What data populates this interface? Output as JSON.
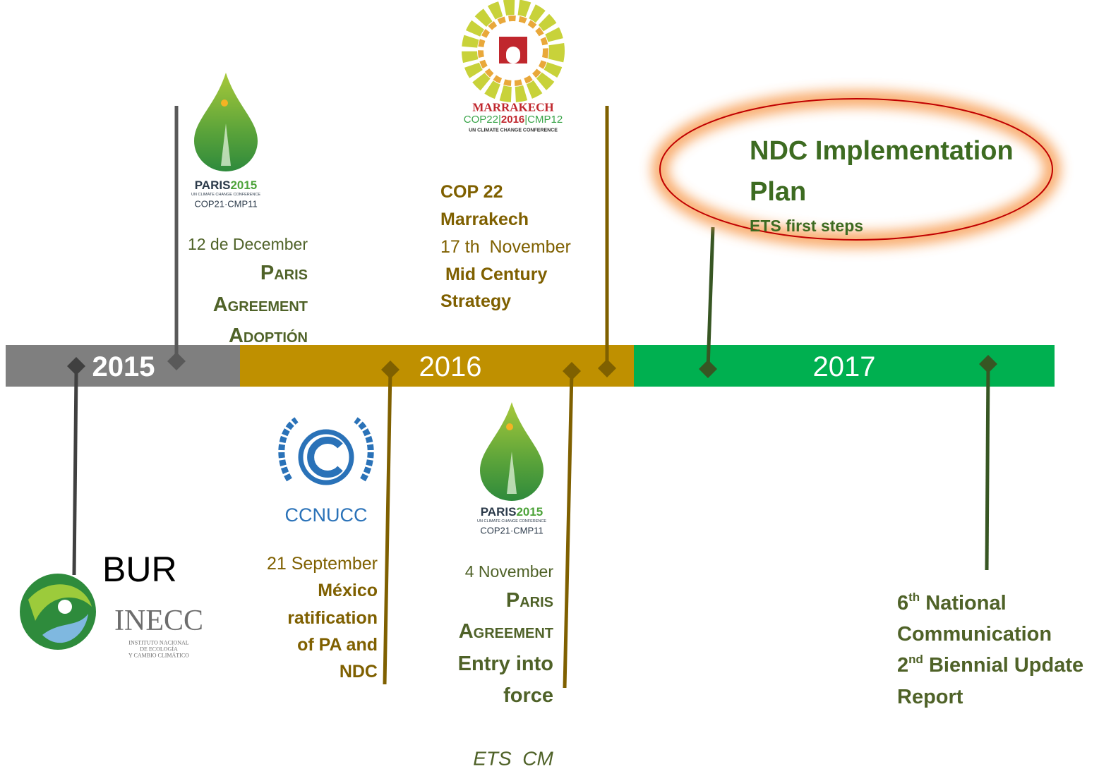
{
  "timeline": {
    "years": [
      "2015",
      "2016",
      "2017"
    ]
  },
  "logos": {
    "paris_top": {
      "name": [
        "PARIS",
        "2015"
      ],
      "subtitle": "UN CLIMATE CHANGE CONFERENCE",
      "meeting": "COP21·CMP11"
    },
    "marrakech": {
      "name": "MARRAKECH",
      "meeting": [
        "COP22|",
        "2016",
        "|CMP12"
      ],
      "subtitle": "UN CLIMATE CHANGE CONFERENCE"
    },
    "ccnucc": {
      "name": "CCNUCC"
    },
    "paris_bottom": {
      "name": [
        "PARIS",
        "2015"
      ],
      "subtitle": "UN CLIMATE CHANGE CONFERENCE",
      "meeting": "COP21·CMP11"
    },
    "inecc": {
      "name": "INECC",
      "subtitle": [
        "INSTITUTO NACIONAL",
        "DE ECOLOGÍA",
        "Y CAMBIO CLIMÁTICO"
      ]
    }
  },
  "events": [
    {
      "date": "12 de December",
      "title": [
        "Paris",
        "Agreement",
        "Adoptión"
      ]
    },
    {
      "heading": [
        "COP 22",
        "Marrakech"
      ],
      "date": "17 th  November",
      "title": [
        " Mid Century",
        "Strategy"
      ]
    },
    {
      "title": [
        "NDC Implementation",
        "Plan"
      ],
      "subtitle": "ETS first steps"
    },
    {
      "date": "21 September",
      "title": [
        "México",
        "ratification",
        "of PA and",
        "NDC"
      ]
    },
    {
      "date": "4 November",
      "title": [
        "Paris",
        "Agreement",
        "Entry into",
        "force"
      ]
    },
    {
      "lines": [
        {
          "number": "6",
          "suffix": "th",
          "text": " National"
        },
        {
          "text": "Communication"
        },
        {
          "number": "2",
          "suffix": "nd",
          "text": " Biennial Update"
        },
        {
          "text": "Report"
        }
      ]
    },
    {
      "title": "BUR"
    }
  ],
  "note": "ETS  CM"
}
